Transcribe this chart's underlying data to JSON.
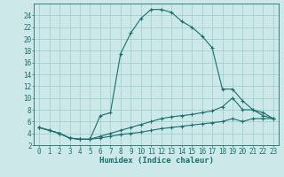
{
  "title": "",
  "xlabel": "Humidex (Indice chaleur)",
  "bg_color": "#cce8e8",
  "grid_color": "#99cccc",
  "line_color": "#1a6e6e",
  "xlim": [
    -0.5,
    23.5
  ],
  "ylim": [
    2,
    26
  ],
  "xticks": [
    0,
    1,
    2,
    3,
    4,
    5,
    6,
    7,
    8,
    9,
    10,
    11,
    12,
    13,
    14,
    15,
    16,
    17,
    18,
    19,
    20,
    21,
    22,
    23
  ],
  "yticks": [
    2,
    4,
    6,
    8,
    10,
    12,
    14,
    16,
    18,
    20,
    22,
    24
  ],
  "line1_x": [
    0,
    1,
    2,
    3,
    4,
    5,
    6,
    7,
    8,
    9,
    10,
    11,
    12,
    13,
    14,
    15,
    16,
    17,
    18,
    19,
    20,
    21,
    22,
    23
  ],
  "line1_y": [
    5.0,
    4.5,
    4.0,
    3.2,
    3.0,
    3.0,
    7.0,
    7.5,
    17.5,
    21.0,
    23.5,
    25.0,
    25.0,
    24.5,
    23.0,
    22.0,
    20.5,
    18.5,
    11.5,
    11.5,
    9.5,
    8.0,
    7.5,
    6.5
  ],
  "line2_x": [
    0,
    1,
    2,
    3,
    4,
    5,
    6,
    7,
    8,
    9,
    10,
    11,
    12,
    13,
    14,
    15,
    16,
    17,
    18,
    19,
    20,
    21,
    22,
    23
  ],
  "line2_y": [
    5.0,
    4.5,
    4.0,
    3.2,
    3.0,
    3.0,
    3.5,
    4.0,
    4.5,
    5.0,
    5.5,
    6.0,
    6.5,
    6.8,
    7.0,
    7.2,
    7.5,
    7.8,
    8.5,
    10.0,
    8.0,
    8.0,
    7.0,
    6.5
  ],
  "line3_x": [
    0,
    1,
    2,
    3,
    4,
    5,
    6,
    7,
    8,
    9,
    10,
    11,
    12,
    13,
    14,
    15,
    16,
    17,
    18,
    19,
    20,
    21,
    22,
    23
  ],
  "line3_y": [
    5.0,
    4.5,
    4.0,
    3.2,
    3.0,
    3.0,
    3.2,
    3.5,
    3.8,
    4.0,
    4.2,
    4.5,
    4.8,
    5.0,
    5.2,
    5.4,
    5.6,
    5.8,
    6.0,
    6.5,
    6.0,
    6.5,
    6.5,
    6.5
  ],
  "tick_fontsize": 5.5,
  "xlabel_fontsize": 6.5
}
